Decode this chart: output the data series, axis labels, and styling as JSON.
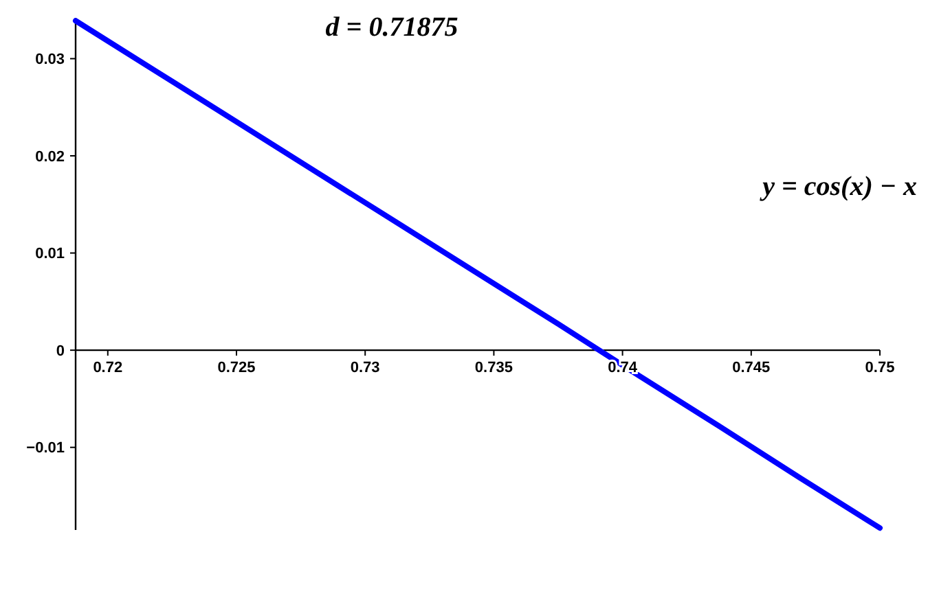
{
  "chart_data": {
    "type": "line",
    "x": [
      0.71875,
      0.721875,
      0.725,
      0.728125,
      0.73125,
      0.734375,
      0.7375,
      0.740625,
      0.74375,
      0.746875,
      0.75
    ],
    "series": [
      {
        "color": "#0000ff",
        "values": [
          0.0339,
          0.0287,
          0.0235,
          0.0183,
          0.0131,
          0.0079,
          0.0027,
          -0.0026,
          -0.0078,
          -0.0131,
          -0.0183
        ]
      }
    ],
    "xlim": [
      0.71875,
      0.75
    ],
    "ylim": [
      -0.0185,
      0.0342
    ],
    "xticks": [
      0.72,
      0.725,
      0.73,
      0.735,
      0.74,
      0.745,
      0.75
    ],
    "yticks": [
      -0.01,
      0,
      0.01,
      0.02,
      0.03
    ],
    "annotations": [
      "d = 0.71875",
      "y = cos(x) − x"
    ],
    "grid": false,
    "marker": "none",
    "line_style": "solid"
  }
}
